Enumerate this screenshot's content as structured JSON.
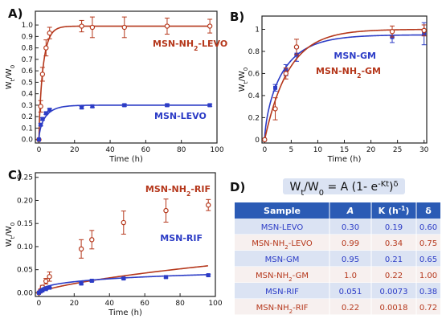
{
  "panels": [
    {
      "id": "A",
      "label": "A)",
      "xlabel": "Time (h)",
      "ylabel": "Wt/W0",
      "xlim": [
        -2,
        100
      ],
      "ylim": [
        -0.03,
        1.12
      ],
      "xticks": [
        0,
        20,
        40,
        60,
        80,
        100
      ],
      "yticks": [
        0.0,
        0.1,
        0.2,
        0.3,
        0.4,
        0.5,
        0.6,
        0.7,
        0.8,
        0.9,
        1.0
      ],
      "ytick_labels": [
        "0.0",
        "0.1",
        "0.2",
        "0.3",
        "0.4",
        "0.5",
        "0.6",
        "0.7",
        "0.8",
        "0.9",
        "1.0"
      ],
      "series": [
        {
          "name": "MSN-NH2-LEVO",
          "color": "#b5371b",
          "marker": "circle-open",
          "x": [
            0,
            1,
            2,
            4,
            6,
            24,
            30,
            48,
            72,
            96
          ],
          "y": [
            0.0,
            0.29,
            0.57,
            0.8,
            0.93,
            0.99,
            0.98,
            0.98,
            0.99,
            0.99
          ],
          "err": [
            0,
            0.05,
            0.06,
            0.07,
            0.05,
            0.05,
            0.09,
            0.09,
            0.07,
            0.06
          ],
          "fit": {
            "A": 0.99,
            "K": 0.34,
            "d": 0.75
          }
        },
        {
          "name": "MSN-LEVO",
          "color": "#2c3cc6",
          "marker": "square",
          "x": [
            0,
            1,
            2,
            4,
            6,
            24,
            30,
            48,
            72,
            96
          ],
          "y": [
            0.0,
            0.13,
            0.18,
            0.23,
            0.26,
            0.28,
            0.29,
            0.3,
            0.3,
            0.3
          ],
          "err": [
            0,
            0.01,
            0.01,
            0.01,
            0.01,
            0.01,
            0.01,
            0.01,
            0.01,
            0.01
          ],
          "fit": {
            "A": 0.3,
            "K": 0.19,
            "d": 0.6
          }
        }
      ]
    },
    {
      "id": "B",
      "label": "B)",
      "xlabel": "Time (h)",
      "ylabel": "Wt/W0",
      "xlim": [
        -0.5,
        30.5
      ],
      "ylim": [
        -0.03,
        1.12
      ],
      "xticks": [
        0,
        5,
        10,
        15,
        20,
        25,
        30
      ],
      "yticks": [
        0.0,
        0.2,
        0.4,
        0.6,
        0.8,
        1.0
      ],
      "ytick_labels": [
        "0",
        "0.2",
        "0.4",
        "0.6",
        "0.8",
        "1"
      ],
      "series": [
        {
          "name": "MSN-GM",
          "color": "#2c3cc6",
          "marker": "square",
          "x": [
            0,
            2,
            4,
            6,
            24,
            30
          ],
          "y": [
            0.0,
            0.47,
            0.63,
            0.77,
            0.93,
            0.96
          ],
          "err": [
            0,
            0.03,
            0.05,
            0.06,
            0.05,
            0.1
          ],
          "fit": {
            "A": 0.95,
            "K": 0.21,
            "d": 0.65
          }
        },
        {
          "name": "MSN-NH2-GM",
          "color": "#b5371b",
          "marker": "circle-open",
          "x": [
            0,
            2,
            4,
            6,
            24,
            30
          ],
          "y": [
            0.0,
            0.28,
            0.6,
            0.84,
            0.98,
            0.99
          ],
          "err": [
            0,
            0.1,
            0.05,
            0.07,
            0.05,
            0.05
          ],
          "fit": {
            "A": 1.0,
            "K": 0.22,
            "d": 1.0
          }
        }
      ]
    },
    {
      "id": "C",
      "label": "C)",
      "xlabel": "Time (h)",
      "ylabel": "Wt/W0",
      "xlim": [
        -2,
        100
      ],
      "ylim": [
        -0.008,
        0.26
      ],
      "xticks": [
        0,
        20,
        40,
        60,
        80,
        100
      ],
      "yticks": [
        0.0,
        0.05,
        0.1,
        0.15,
        0.2,
        0.25
      ],
      "ytick_labels": [
        "0.00",
        "0.05",
        "0.10",
        "0.15",
        "0.20",
        "0.25"
      ],
      "series": [
        {
          "name": "MSN-NH2-RIF",
          "color": "#b5371b",
          "marker": "circle-open",
          "x": [
            0,
            1,
            2,
            4,
            6,
            24,
            30,
            48,
            72,
            96
          ],
          "y": [
            0.0,
            0.005,
            0.012,
            0.025,
            0.035,
            0.095,
            0.115,
            0.152,
            0.178,
            0.19
          ],
          "err": [
            0,
            0.003,
            0.004,
            0.006,
            0.01,
            0.02,
            0.02,
            0.025,
            0.025,
            0.012
          ],
          "fit": {
            "A": 0.22,
            "K": 0.0018,
            "d": 0.72
          }
        },
        {
          "name": "MSN-RIF",
          "color": "#2c3cc6",
          "marker": "square",
          "x": [
            0,
            1,
            2,
            4,
            6,
            24,
            30,
            48,
            72,
            96
          ],
          "y": [
            0.0,
            0.003,
            0.005,
            0.008,
            0.011,
            0.02,
            0.026,
            0.031,
            0.034,
            0.038
          ],
          "err": [
            0,
            0.001,
            0.001,
            0.001,
            0.001,
            0.002,
            0.002,
            0.002,
            0.002,
            0.002
          ],
          "fit": {
            "A": 0.051,
            "K": 0.0073,
            "d": 0.38
          }
        }
      ]
    }
  ],
  "table": {
    "label": "D)",
    "formula": "Wt/W0 = A (1- e-Kt)δ",
    "headers": [
      "Sample",
      "A",
      "K (h-1)",
      "δ"
    ],
    "rows": [
      {
        "sample": "MSN-LEVO",
        "A": "0.30",
        "K": "0.19",
        "d": "0.60",
        "color": "#2c3cc6"
      },
      {
        "sample": "MSN-NH2-LEVO",
        "A": "0.99",
        "K": "0.34",
        "d": "0.75",
        "color": "#b5371b"
      },
      {
        "sample": "MSN-GM",
        "A": "0.95",
        "K": "0.21",
        "d": "0.65",
        "color": "#2c3cc6"
      },
      {
        "sample": "MSN-NH2-GM",
        "A": "1.0",
        "K": "0.22",
        "d": "1.00",
        "color": "#b5371b"
      },
      {
        "sample": "MSN-RIF",
        "A": "0.051",
        "K": "0.0073",
        "d": "0.38",
        "color": "#2c3cc6"
      },
      {
        "sample": "MSN-NH2-RIF",
        "A": "0.22",
        "K": "0.0018",
        "d": "0.72",
        "color": "#b5371b"
      }
    ],
    "header_color": "#2b5bb5",
    "row_colors": [
      "#dbe3f3",
      "#f7f0ef"
    ]
  },
  "chart_data": [
    {
      "type": "scatter",
      "panel": "A",
      "xlabel": "Time (h)",
      "ylabel": "Wt/W0",
      "series": [
        {
          "name": "MSN-NH2-LEVO",
          "x": [
            0,
            1,
            2,
            4,
            6,
            24,
            30,
            48,
            72,
            96
          ],
          "y": [
            0.0,
            0.29,
            0.57,
            0.8,
            0.93,
            0.99,
            0.98,
            0.98,
            0.99,
            0.99
          ]
        },
        {
          "name": "MSN-LEVO",
          "x": [
            0,
            1,
            2,
            4,
            6,
            24,
            30,
            48,
            72,
            96
          ],
          "y": [
            0.0,
            0.13,
            0.18,
            0.23,
            0.26,
            0.28,
            0.29,
            0.3,
            0.3,
            0.3
          ]
        }
      ]
    },
    {
      "type": "scatter",
      "panel": "B",
      "xlabel": "Time (h)",
      "ylabel": "Wt/W0",
      "series": [
        {
          "name": "MSN-GM",
          "x": [
            0,
            2,
            4,
            6,
            24,
            30
          ],
          "y": [
            0.0,
            0.47,
            0.63,
            0.77,
            0.93,
            0.96
          ]
        },
        {
          "name": "MSN-NH2-GM",
          "x": [
            0,
            2,
            4,
            6,
            24,
            30
          ],
          "y": [
            0.0,
            0.28,
            0.6,
            0.84,
            0.98,
            0.99
          ]
        }
      ]
    },
    {
      "type": "scatter",
      "panel": "C",
      "xlabel": "Time (h)",
      "ylabel": "Wt/W0",
      "series": [
        {
          "name": "MSN-NH2-RIF",
          "x": [
            0,
            1,
            2,
            4,
            6,
            24,
            30,
            48,
            72,
            96
          ],
          "y": [
            0.0,
            0.005,
            0.012,
            0.025,
            0.035,
            0.095,
            0.115,
            0.152,
            0.178,
            0.19
          ]
        },
        {
          "name": "MSN-RIF",
          "x": [
            0,
            1,
            2,
            4,
            6,
            24,
            30,
            48,
            72,
            96
          ],
          "y": [
            0.0,
            0.003,
            0.005,
            0.008,
            0.011,
            0.02,
            0.026,
            0.031,
            0.034,
            0.038
          ]
        }
      ]
    },
    {
      "type": "table",
      "panel": "D",
      "columns": [
        "Sample",
        "A",
        "K (h-1)",
        "δ"
      ],
      "rows": [
        [
          "MSN-LEVO",
          0.3,
          0.19,
          0.6
        ],
        [
          "MSN-NH2-LEVO",
          0.99,
          0.34,
          0.75
        ],
        [
          "MSN-GM",
          0.95,
          0.21,
          0.65
        ],
        [
          "MSN-NH2-GM",
          1.0,
          0.22,
          1.0
        ],
        [
          "MSN-RIF",
          0.051,
          0.0073,
          0.38
        ],
        [
          "MSN-NH2-RIF",
          0.22,
          0.0018,
          0.72
        ]
      ]
    }
  ]
}
